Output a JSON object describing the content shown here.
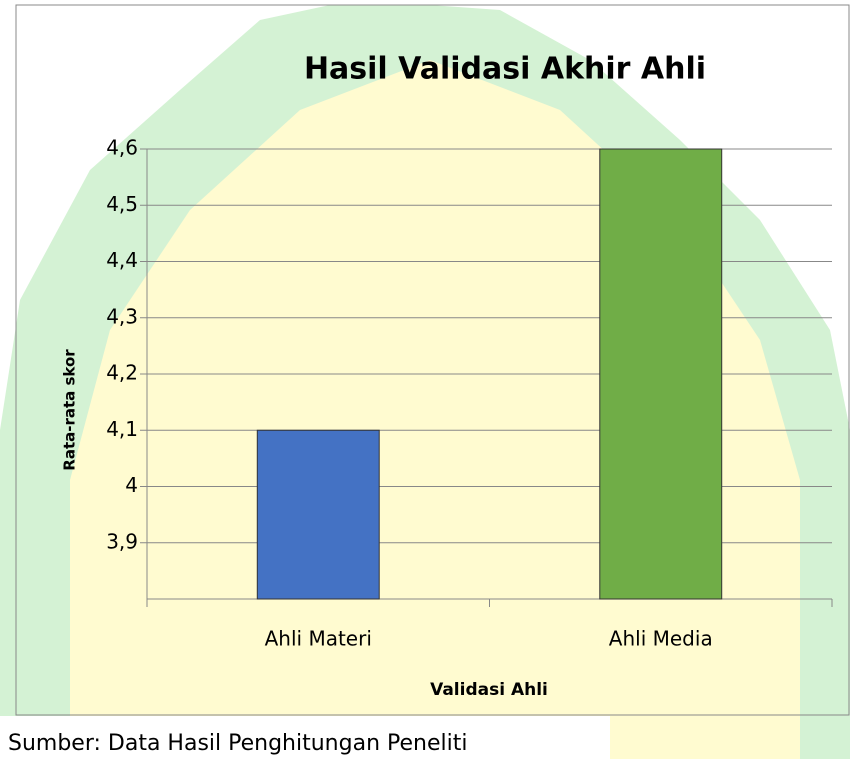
{
  "chart_data": {
    "type": "bar",
    "title": "Hasil Validasi Akhir Ahli",
    "x_label": "Validasi Ahli",
    "y_label": "Rata-rata skor",
    "categories": [
      "Ahli Materi",
      "Ahli Media"
    ],
    "values": [
      4.1,
      4.6
    ],
    "colors": [
      "#4472c4",
      "#70ad47"
    ],
    "ylim": [
      3.8,
      4.6
    ],
    "yticks": [
      {
        "value": 3.9,
        "label": "3,9"
      },
      4,
      {
        "value": 4.1,
        "label": "4,1"
      },
      {
        "value": 4.2,
        "label": "4,2"
      },
      {
        "value": 4.3,
        "label": "4,3"
      },
      {
        "value": 4.4,
        "label": "4,4"
      },
      {
        "value": 4.5,
        "label": "4,5"
      },
      {
        "value": 4.6,
        "label": "4,6"
      }
    ],
    "grid": true
  },
  "caption": "Sumber: Data Hasil Penghitungan Peneliti"
}
